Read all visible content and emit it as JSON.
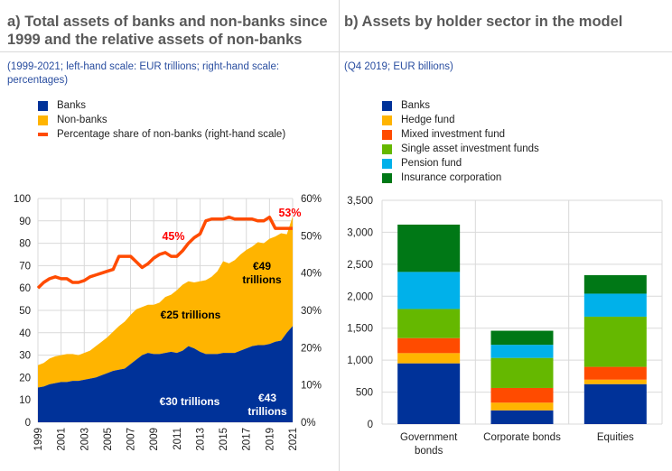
{
  "panel_a": {
    "title_line1": "a) Total assets of banks and non-banks since",
    "title_line2": "1999 and the relative assets of non-banks",
    "subtitle_line1": "(1999-2021; left-hand scale: EUR trillions; right-hand scale:",
    "subtitle_line2": "percentages)",
    "legend": [
      {
        "label": "Banks",
        "color": "#003299",
        "kind": "square"
      },
      {
        "label": "Non-banks",
        "color": "#ffb400",
        "kind": "square"
      },
      {
        "label": "Percentage share of non-banks (right-hand scale)",
        "color": "#ff4b00",
        "kind": "line"
      }
    ]
  },
  "panel_b": {
    "title": "b) Assets by holder sector in the model",
    "subtitle": "(Q4 2019; EUR billions)",
    "legend": [
      {
        "label": "Banks",
        "color": "#003299"
      },
      {
        "label": "Hedge fund",
        "color": "#ffb400"
      },
      {
        "label": "Mixed investment fund",
        "color": "#ff4b00"
      },
      {
        "label": "Single asset investment funds",
        "color": "#65b800"
      },
      {
        "label": "Pension fund",
        "color": "#00b1ea"
      },
      {
        "label": "Insurance corporation",
        "color": "#007816"
      }
    ]
  },
  "chart_data": [
    {
      "type": "area",
      "title": "Total assets of banks and non-banks since 1999 and the relative assets of non-banks",
      "xlabel": "",
      "ylabel": "EUR trillions",
      "y2label": "percentages",
      "ylim": [
        0,
        100
      ],
      "y2lim": [
        0,
        60
      ],
      "yticks": [
        "0",
        "10",
        "20",
        "30",
        "40",
        "50",
        "60",
        "70",
        "80",
        "90",
        "100"
      ],
      "y2ticks": [
        "0%",
        "10%",
        "20%",
        "30%",
        "40%",
        "50%",
        "60%"
      ],
      "xticks": [
        "1999",
        "2001",
        "2003",
        "2005",
        "2007",
        "2009",
        "2011",
        "2013",
        "2015",
        "2017",
        "2019",
        "2021"
      ],
      "grid": true,
      "x": [
        1999.0,
        1999.5,
        2000.0,
        2000.5,
        2001.0,
        2001.5,
        2002.0,
        2002.5,
        2003.0,
        2003.5,
        2004.0,
        2004.5,
        2005.0,
        2005.5,
        2006.0,
        2006.5,
        2007.0,
        2007.5,
        2008.0,
        2008.5,
        2009.0,
        2009.5,
        2010.0,
        2010.5,
        2011.0,
        2011.5,
        2012.0,
        2012.5,
        2013.0,
        2013.5,
        2014.0,
        2014.5,
        2015.0,
        2015.5,
        2016.0,
        2016.5,
        2017.0,
        2017.5,
        2018.0,
        2018.5,
        2019.0,
        2019.5,
        2020.0,
        2020.5,
        2021.0
      ],
      "series": [
        {
          "name": "Banks",
          "color": "#003299",
          "values": [
            15.5,
            16,
            17,
            17.5,
            18,
            18,
            18.5,
            18.5,
            19,
            19.5,
            20,
            21,
            22,
            23,
            23.5,
            24,
            26,
            28,
            30,
            31,
            30.5,
            30.5,
            31,
            31.5,
            31,
            32,
            34,
            33,
            31.5,
            30.5,
            30.5,
            30.5,
            31,
            31,
            31,
            32,
            33,
            34,
            34.5,
            34.5,
            35,
            36,
            36.5,
            40,
            43
          ]
        },
        {
          "name": "Non-banks",
          "color": "#ffb400",
          "values": [
            10,
            10.5,
            11.5,
            12,
            12,
            12.5,
            12,
            11.5,
            12,
            12.5,
            14,
            15,
            16,
            17.5,
            19.5,
            21,
            22,
            22.5,
            21.5,
            21.5,
            22,
            23,
            25,
            25.5,
            28,
            29.5,
            29,
            29.5,
            31.5,
            33,
            34.5,
            37,
            41,
            40,
            41.5,
            43,
            44,
            44.5,
            46,
            45.5,
            47,
            47,
            48,
            44,
            49
          ]
        },
        {
          "name": "Percentage share of non-banks (right-hand scale)",
          "color": "#ff4b00",
          "axis": "right",
          "values": [
            36,
            37.5,
            38.5,
            39,
            38.5,
            38.5,
            37.5,
            37.5,
            38,
            39,
            39.5,
            40,
            40.5,
            41,
            44.5,
            44.5,
            44.5,
            43,
            41.5,
            42.5,
            44,
            45,
            45.5,
            44.5,
            44.5,
            46,
            48,
            49.5,
            50.5,
            54,
            54.5,
            54.5,
            54.5,
            55,
            54.5,
            54.5,
            54.5,
            54.5,
            54,
            54,
            55,
            52,
            52,
            52,
            52
          ]
        }
      ],
      "annotations": [
        {
          "text": "45%",
          "color": "#ff0000"
        },
        {
          "text": "53%",
          "color": "#ff0000"
        },
        {
          "text": "€25 trillions",
          "color": "#000000"
        },
        {
          "text": "€49 trillions",
          "color": "#000000"
        },
        {
          "text": "€30 trillions",
          "color": "#ffffff"
        },
        {
          "text": "€43 trillions",
          "color": "#ffffff"
        }
      ]
    },
    {
      "type": "bar",
      "stacked": true,
      "title": "Assets by holder sector in the model",
      "ylabel": "EUR billions",
      "ylim": [
        0,
        3500
      ],
      "yticks": [
        "0",
        "500",
        "1,000",
        "1,500",
        "2,000",
        "2,500",
        "3,000",
        "3,500"
      ],
      "grid": true,
      "categories": [
        "Government bonds",
        "Corporate bonds",
        "Equities"
      ],
      "category_lines": [
        [
          "Government",
          "bonds"
        ],
        [
          "Corporate bonds"
        ],
        [
          "Equities"
        ]
      ],
      "series": [
        {
          "name": "Banks",
          "color": "#003299",
          "values": [
            950,
            215,
            625
          ]
        },
        {
          "name": "Hedge fund",
          "color": "#ffb400",
          "values": [
            160,
            120,
            70
          ]
        },
        {
          "name": "Mixed investment fund",
          "color": "#ff4b00",
          "values": [
            235,
            230,
            200
          ]
        },
        {
          "name": "Single asset investment funds",
          "color": "#65b800",
          "values": [
            455,
            470,
            785
          ]
        },
        {
          "name": "Pension fund",
          "color": "#00b1ea",
          "values": [
            580,
            205,
            360
          ]
        },
        {
          "name": "Insurance corporation",
          "color": "#007816",
          "values": [
            740,
            220,
            290
          ]
        }
      ]
    }
  ]
}
